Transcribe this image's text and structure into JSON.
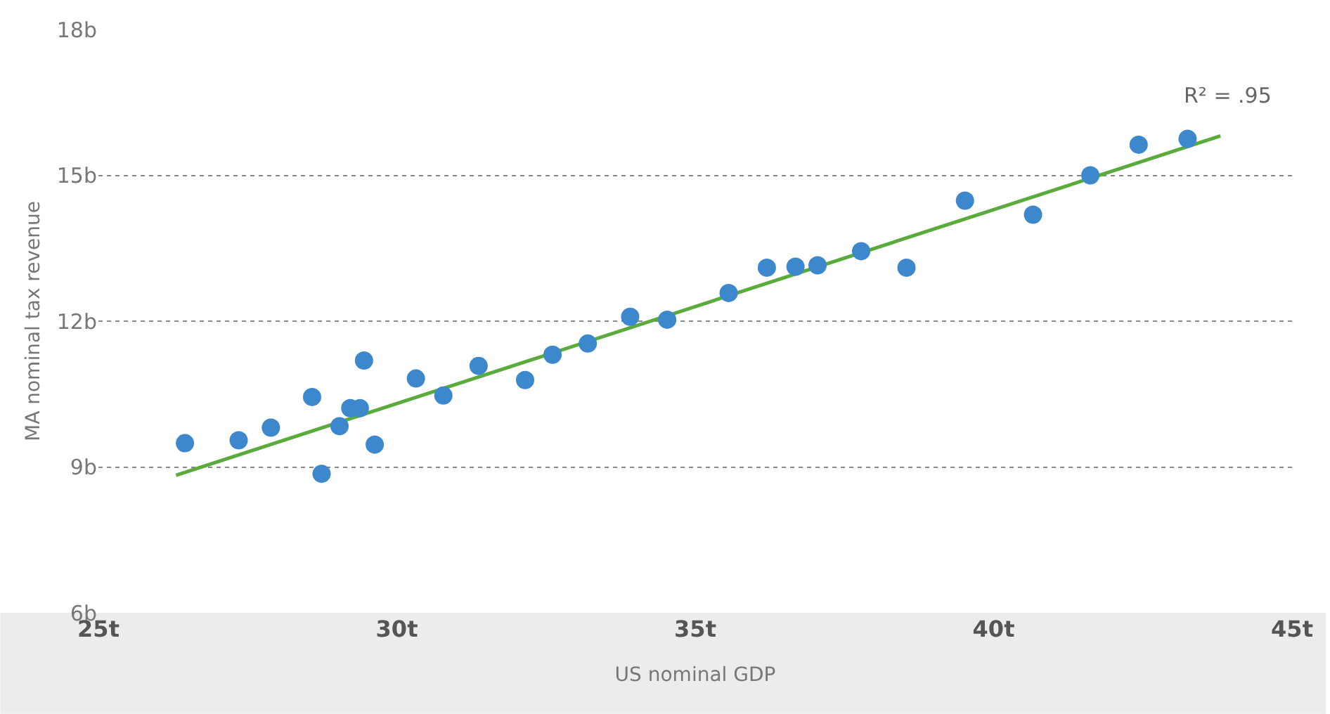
{
  "chart_data": {
    "type": "scatter",
    "xlabel": "US nominal GDP",
    "ylabel": "MA nominal tax revenue",
    "annotations": [
      "R² = .95"
    ],
    "xlim": [
      25,
      45
    ],
    "ylim": [
      6,
      18
    ],
    "grid": "y",
    "xticks": [
      {
        "value": 25,
        "label": "25t"
      },
      {
        "value": 30,
        "label": "30t"
      },
      {
        "value": 35,
        "label": "35t"
      },
      {
        "value": 40,
        "label": "40t"
      },
      {
        "value": 45,
        "label": "45t"
      }
    ],
    "yticks": [
      {
        "value": 6,
        "label": "6b"
      },
      {
        "value": 9,
        "label": "9b"
      },
      {
        "value": 12,
        "label": "12b"
      },
      {
        "value": 15,
        "label": "15b"
      },
      {
        "value": 18,
        "label": "18b"
      }
    ],
    "series": [
      {
        "type": "line",
        "color": "#5aab3c",
        "x": [
          26.3,
          43.8
        ],
        "values": [
          8.83,
          15.81
        ]
      },
      {
        "marker": "circle",
        "color": "#3d87cc",
        "x": [
          26.45,
          27.35,
          27.89,
          28.58,
          28.74,
          29.04,
          29.22,
          29.38,
          29.45,
          29.63,
          30.32,
          30.78,
          31.37,
          32.15,
          32.61,
          33.2,
          33.91,
          34.53,
          35.56,
          36.2,
          36.68,
          37.05,
          37.78,
          38.54,
          39.52,
          40.66,
          41.62,
          42.43,
          43.25
        ],
        "values": [
          9.49,
          9.55,
          9.81,
          10.44,
          8.86,
          9.84,
          10.21,
          10.21,
          11.19,
          9.46,
          10.82,
          10.47,
          11.08,
          10.79,
          11.31,
          11.54,
          12.09,
          12.03,
          12.58,
          13.1,
          13.12,
          13.15,
          13.44,
          13.1,
          14.48,
          14.19,
          15.0,
          15.63,
          15.75
        ]
      }
    ]
  }
}
